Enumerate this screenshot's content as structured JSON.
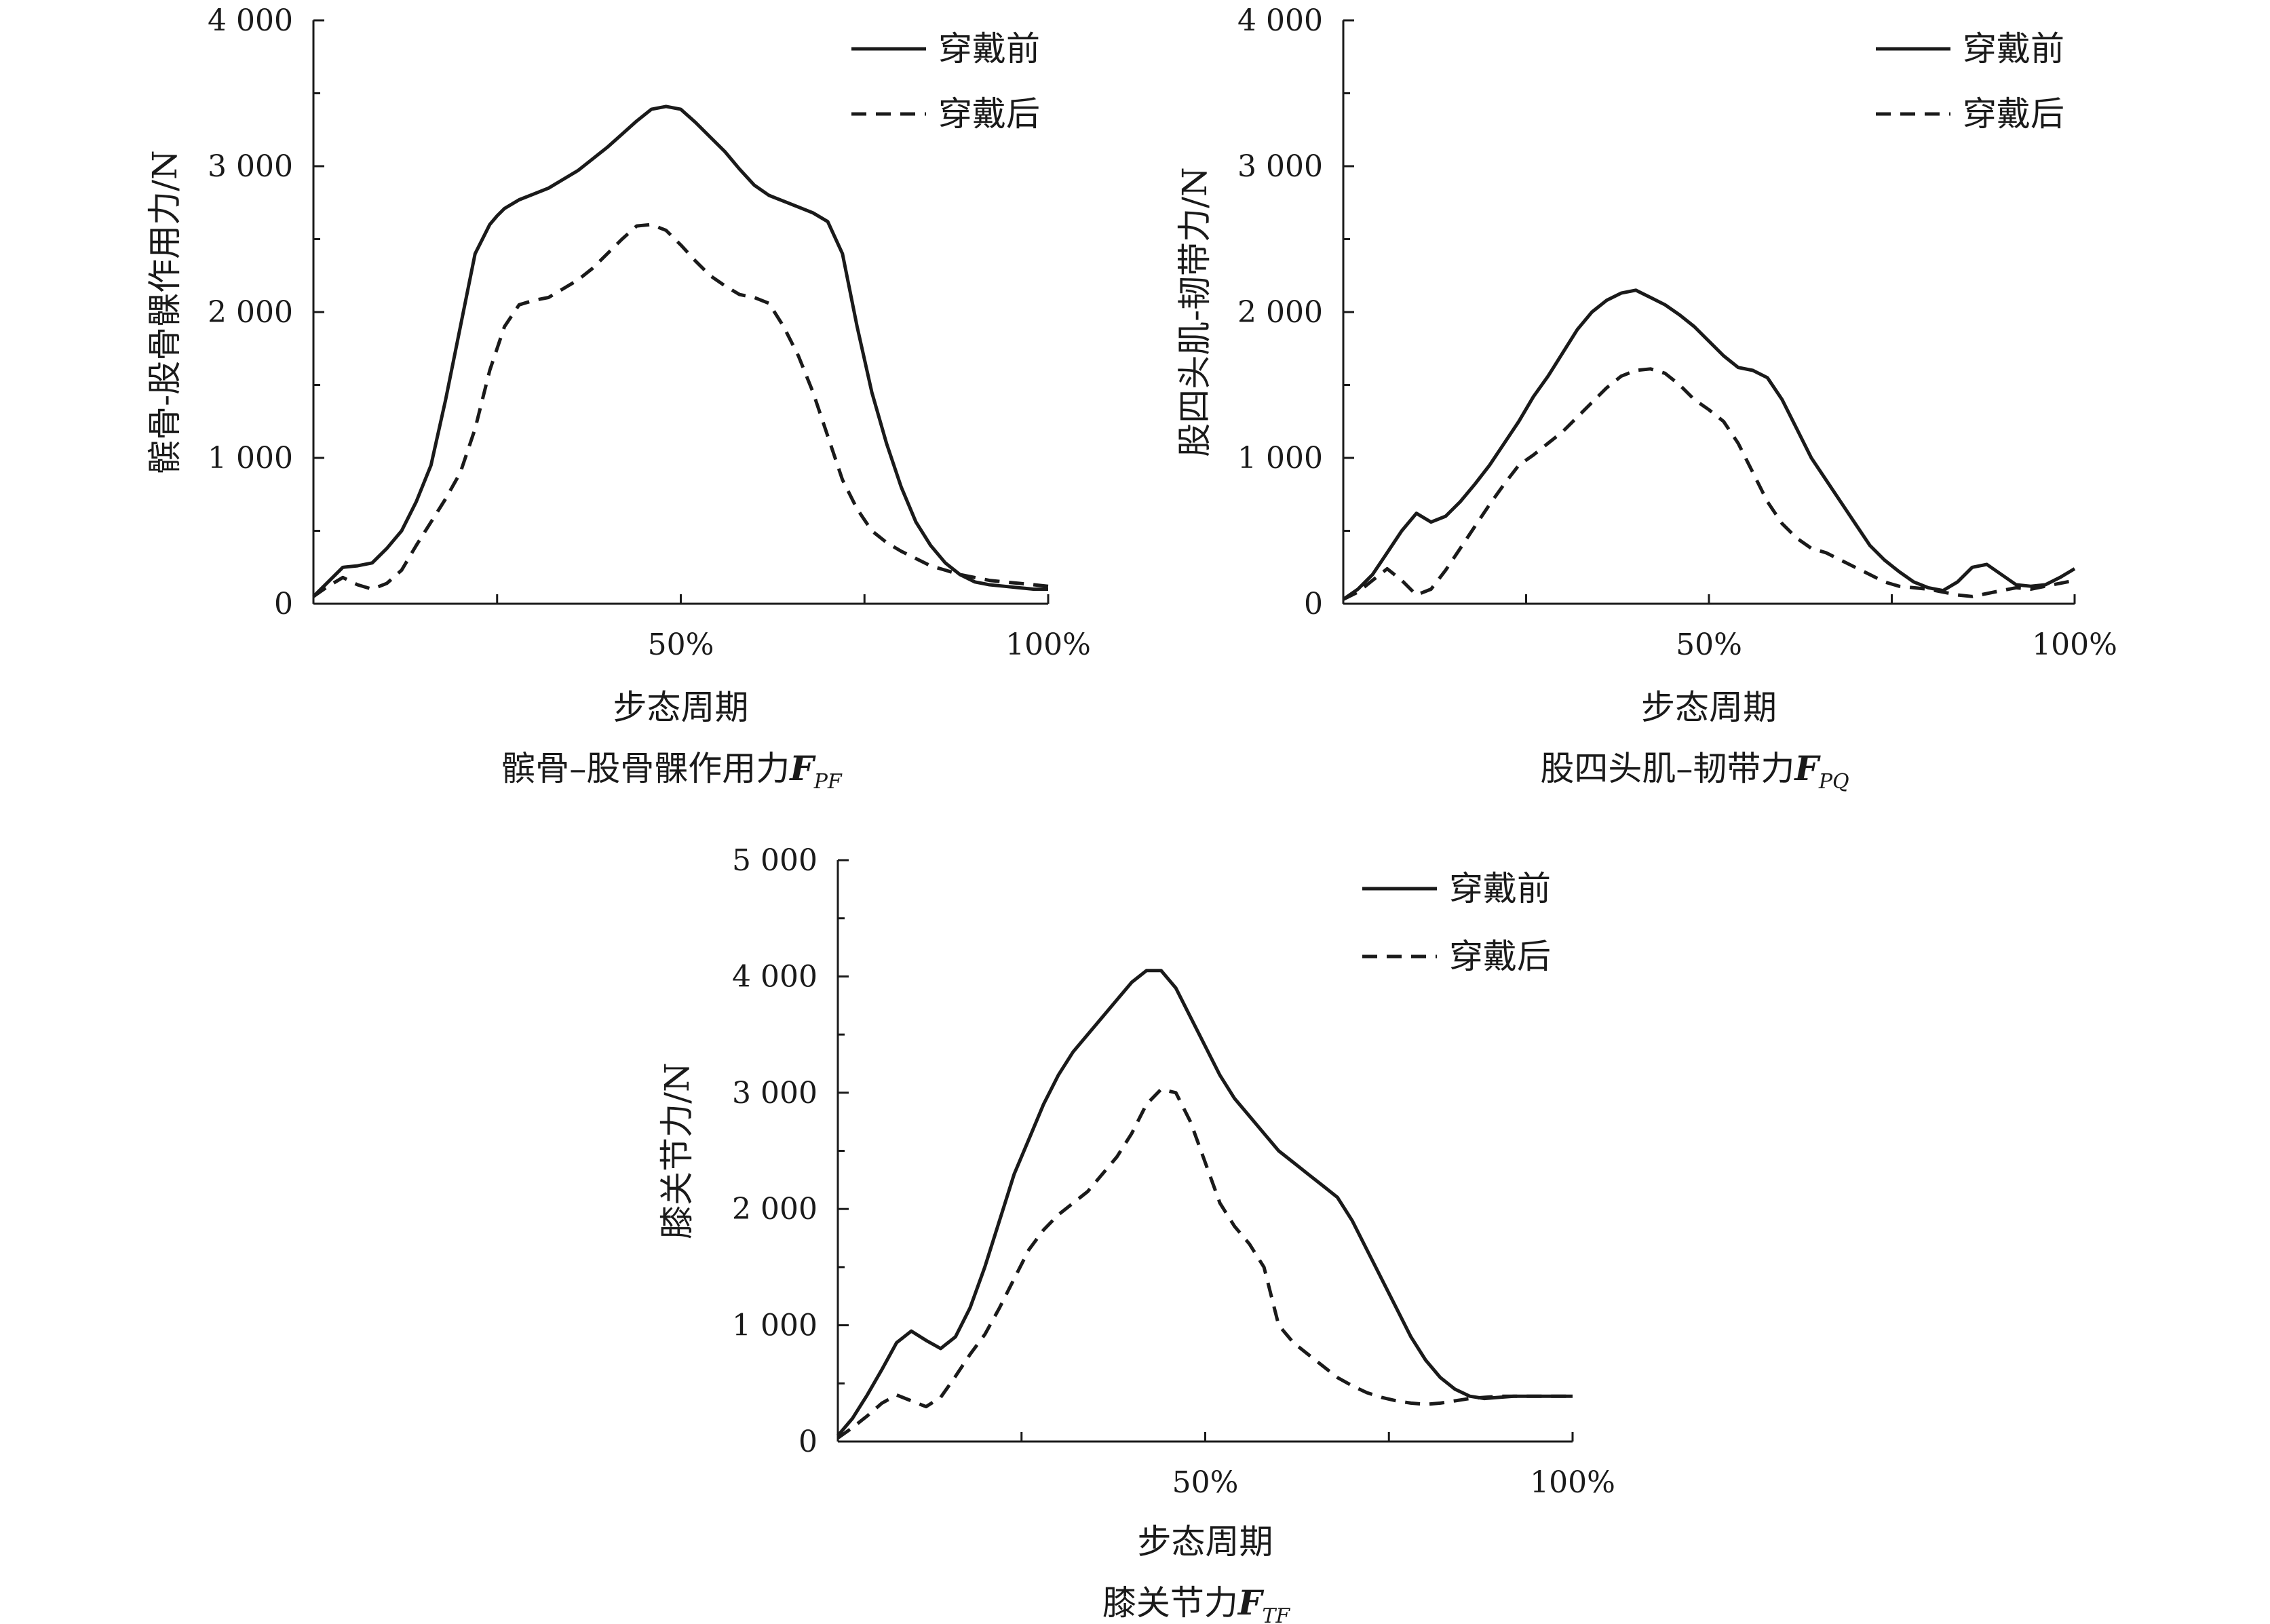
{
  "colors": {
    "line": "#1a1a1a",
    "background": "#ffffff"
  },
  "chart_data": [
    {
      "type": "line",
      "ylabel": "髌骨-股骨髁作用力/N",
      "xlabel": "步态周期",
      "caption": {
        "text": "髌骨–股骨髁作用力",
        "symbol": "F",
        "subscript": "PF"
      },
      "xlim": [
        0,
        100
      ],
      "ylim": [
        0,
        4000
      ],
      "x_ticks": [
        {
          "value": 50,
          "label": "50%"
        },
        {
          "value": 100,
          "label": "100%"
        }
      ],
      "y_ticks": [
        {
          "value": 0,
          "label": "0"
        },
        {
          "value": 1000,
          "label": "1 000"
        },
        {
          "value": 2000,
          "label": "2 000"
        },
        {
          "value": 3000,
          "label": "3 000"
        },
        {
          "value": 4000,
          "label": "4 000"
        }
      ],
      "legend": {
        "position": "top-right"
      },
      "series": [
        {
          "name": "穿戴前",
          "style": "solid",
          "x": [
            0,
            2,
            4,
            6,
            8,
            10,
            12,
            14,
            16,
            18,
            20,
            22,
            24,
            25,
            26,
            28,
            30,
            32,
            34,
            36,
            38,
            40,
            42,
            44,
            46,
            48,
            50,
            52,
            54,
            56,
            58,
            60,
            62,
            64,
            66,
            68,
            70,
            72,
            74,
            76,
            78,
            80,
            82,
            84,
            86,
            88,
            90,
            92,
            94,
            96,
            98,
            100
          ],
          "y": [
            50,
            150,
            250,
            260,
            280,
            380,
            500,
            700,
            950,
            1400,
            1900,
            2400,
            2600,
            2660,
            2710,
            2770,
            2810,
            2850,
            2910,
            2970,
            3050,
            3130,
            3220,
            3310,
            3390,
            3410,
            3390,
            3300,
            3200,
            3100,
            2980,
            2870,
            2800,
            2760,
            2720,
            2680,
            2620,
            2400,
            1900,
            1450,
            1100,
            800,
            560,
            400,
            280,
            200,
            150,
            130,
            120,
            110,
            100,
            100
          ]
        },
        {
          "name": "穿戴后",
          "style": "dashed",
          "x": [
            0,
            2,
            4,
            6,
            8,
            10,
            12,
            14,
            16,
            18,
            20,
            22,
            24,
            26,
            28,
            30,
            32,
            34,
            36,
            38,
            40,
            42,
            44,
            46,
            48,
            50,
            52,
            54,
            56,
            58,
            60,
            62,
            64,
            66,
            68,
            70,
            72,
            74,
            76,
            78,
            80,
            82,
            84,
            86,
            88,
            90,
            92,
            94,
            96,
            98,
            100
          ],
          "y": [
            50,
            120,
            180,
            130,
            100,
            140,
            230,
            400,
            560,
            720,
            900,
            1200,
            1600,
            1900,
            2050,
            2080,
            2100,
            2160,
            2220,
            2300,
            2400,
            2500,
            2590,
            2600,
            2560,
            2460,
            2350,
            2250,
            2180,
            2120,
            2100,
            2060,
            1900,
            1700,
            1450,
            1150,
            850,
            650,
            500,
            420,
            360,
            310,
            260,
            230,
            200,
            180,
            160,
            150,
            140,
            130,
            120
          ]
        }
      ]
    },
    {
      "type": "line",
      "ylabel": "股四头肌-韧带力/N",
      "xlabel": "步态周期",
      "caption": {
        "text": "股四头肌–韧带力",
        "symbol": "F",
        "subscript": "PQ"
      },
      "xlim": [
        0,
        100
      ],
      "ylim": [
        0,
        4000
      ],
      "x_ticks": [
        {
          "value": 50,
          "label": "50%"
        },
        {
          "value": 100,
          "label": "100%"
        }
      ],
      "y_ticks": [
        {
          "value": 0,
          "label": "0"
        },
        {
          "value": 1000,
          "label": "1 000"
        },
        {
          "value": 2000,
          "label": "2 000"
        },
        {
          "value": 3000,
          "label": "3 000"
        },
        {
          "value": 4000,
          "label": "4 000"
        }
      ],
      "legend": {
        "position": "top-right"
      },
      "series": [
        {
          "name": "穿戴前",
          "style": "solid",
          "x": [
            0,
            2,
            4,
            6,
            8,
            10,
            12,
            14,
            16,
            18,
            20,
            22,
            24,
            26,
            28,
            30,
            32,
            34,
            36,
            38,
            40,
            42,
            44,
            46,
            48,
            50,
            52,
            54,
            56,
            58,
            60,
            62,
            64,
            66,
            68,
            70,
            72,
            74,
            76,
            78,
            80,
            82,
            84,
            86,
            88,
            90,
            92,
            94,
            96,
            98,
            100
          ],
          "y": [
            30,
            100,
            200,
            350,
            500,
            620,
            560,
            600,
            700,
            820,
            950,
            1100,
            1250,
            1420,
            1560,
            1720,
            1880,
            2000,
            2080,
            2130,
            2150,
            2100,
            2050,
            1980,
            1900,
            1800,
            1700,
            1620,
            1600,
            1550,
            1400,
            1200,
            1000,
            850,
            700,
            550,
            400,
            300,
            220,
            150,
            110,
            90,
            150,
            250,
            270,
            200,
            130,
            120,
            130,
            180,
            240
          ]
        },
        {
          "name": "穿戴后",
          "style": "dashed",
          "x": [
            0,
            2,
            4,
            6,
            8,
            10,
            12,
            14,
            16,
            18,
            20,
            22,
            24,
            26,
            28,
            30,
            32,
            34,
            36,
            38,
            40,
            42,
            44,
            46,
            48,
            50,
            52,
            54,
            56,
            58,
            60,
            62,
            64,
            66,
            68,
            70,
            72,
            74,
            76,
            78,
            80,
            82,
            84,
            86,
            88,
            90,
            92,
            94,
            96,
            98,
            100
          ],
          "y": [
            30,
            80,
            160,
            240,
            160,
            60,
            100,
            230,
            380,
            530,
            680,
            820,
            950,
            1020,
            1100,
            1180,
            1280,
            1380,
            1480,
            1560,
            1600,
            1610,
            1580,
            1500,
            1400,
            1330,
            1250,
            1100,
            900,
            700,
            550,
            450,
            380,
            350,
            300,
            250,
            200,
            150,
            120,
            110,
            100,
            80,
            60,
            50,
            70,
            90,
            110,
            100,
            120,
            140,
            160
          ]
        }
      ]
    },
    {
      "type": "line",
      "ylabel": "膝关节力/N",
      "xlabel": "步态周期",
      "caption": {
        "text": "膝关节力",
        "symbol": "F",
        "subscript": "TF"
      },
      "xlim": [
        0,
        100
      ],
      "ylim": [
        0,
        5000
      ],
      "x_ticks": [
        {
          "value": 50,
          "label": "50%"
        },
        {
          "value": 100,
          "label": "100%"
        }
      ],
      "y_ticks": [
        {
          "value": 0,
          "label": "0"
        },
        {
          "value": 1000,
          "label": "1 000"
        },
        {
          "value": 2000,
          "label": "2 000"
        },
        {
          "value": 3000,
          "label": "3 000"
        },
        {
          "value": 4000,
          "label": "4 000"
        },
        {
          "value": 5000,
          "label": "5 000"
        }
      ],
      "legend": {
        "position": "top-right"
      },
      "series": [
        {
          "name": "穿戴前",
          "style": "solid",
          "x": [
            0,
            2,
            4,
            6,
            8,
            10,
            12,
            14,
            16,
            18,
            20,
            22,
            24,
            26,
            28,
            30,
            32,
            34,
            36,
            38,
            40,
            42,
            44,
            46,
            48,
            50,
            52,
            54,
            56,
            58,
            60,
            62,
            64,
            66,
            68,
            70,
            72,
            74,
            76,
            78,
            80,
            82,
            84,
            86,
            88,
            90,
            92,
            94,
            96,
            98,
            100
          ],
          "y": [
            50,
            200,
            400,
            620,
            850,
            950,
            870,
            800,
            900,
            1150,
            1500,
            1900,
            2300,
            2600,
            2900,
            3150,
            3350,
            3500,
            3650,
            3800,
            3950,
            4050,
            4050,
            3900,
            3650,
            3400,
            3150,
            2950,
            2800,
            2650,
            2500,
            2400,
            2300,
            2200,
            2100,
            1900,
            1650,
            1400,
            1150,
            900,
            700,
            550,
            450,
            390,
            370,
            380,
            390,
            390,
            390,
            390,
            390
          ]
        },
        {
          "name": "穿戴后",
          "style": "dashed",
          "x": [
            0,
            2,
            4,
            6,
            8,
            10,
            12,
            14,
            16,
            18,
            20,
            22,
            24,
            26,
            28,
            30,
            32,
            34,
            36,
            38,
            40,
            42,
            44,
            46,
            48,
            50,
            52,
            54,
            56,
            58,
            60,
            62,
            64,
            66,
            68,
            70,
            72,
            74,
            76,
            78,
            80,
            82,
            84,
            86,
            88,
            90,
            92,
            94,
            96,
            98,
            100
          ],
          "y": [
            30,
            120,
            220,
            330,
            400,
            350,
            300,
            380,
            560,
            750,
            920,
            1150,
            1400,
            1650,
            1820,
            1950,
            2050,
            2150,
            2300,
            2450,
            2650,
            2900,
            3030,
            3000,
            2750,
            2400,
            2050,
            1850,
            1700,
            1500,
            1000,
            850,
            750,
            650,
            550,
            480,
            420,
            380,
            350,
            330,
            320,
            330,
            350,
            370,
            380,
            390,
            390,
            390,
            390,
            390,
            390
          ]
        }
      ]
    }
  ]
}
